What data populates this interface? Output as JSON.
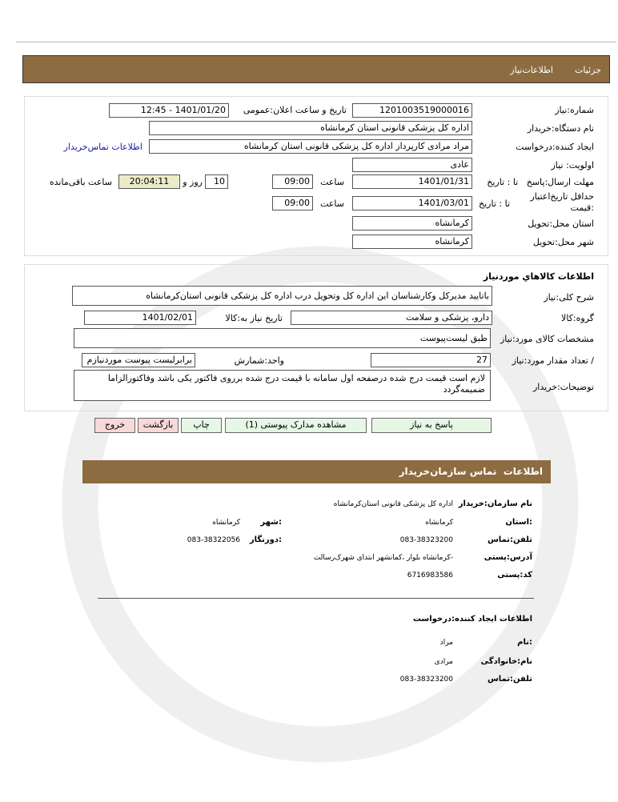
{
  "header": {
    "tabs": [
      "جزئیات",
      "اطلاعات‌نیاز"
    ]
  },
  "need": {
    "number_label": "شماره:نیاز",
    "number": "1201003519000016",
    "announce_label": "تاریخ و ساعت اعلان:عمومی",
    "announce": "1401/01/20 - 12:45",
    "org_label": "نام دستگاه:خریدار",
    "org": "اداره کل پزشکی قانونی استان کرمانشاه",
    "creator_label": "ایجاد کننده:درخواست",
    "creator": "مراد مرادی کارپرداز اداره کل پزشکی قانونی استان کرمانشاه",
    "contact_link": "اطلاعات تماس‌خریدار",
    "priority_label": "اولویت: نیاز",
    "priority": "عادی",
    "deadline_label": "مهلت ارسال:پاسخ   تا : تاریخ",
    "deadline_date": "1401/01/31",
    "time_label": "ساعت",
    "deadline_time": "09:00",
    "days": "10",
    "days_label": "روز و",
    "remaining": "20:04:11",
    "remaining_label": "ساعت باقی‌مانده",
    "validity_label": "حداقل تاریخ‌اعتبار :قیمت",
    "validity_to": "تا : تاریخ",
    "validity_date": "1401/03/01",
    "validity_time": "09:00",
    "province_label": "استان محل:تحویل",
    "province": "کرمانشاه",
    "city_label": "شهر محل:تحویل",
    "city": "کرمانشاه"
  },
  "goods": {
    "title": "اطلاعات کالاهاي موردنياز",
    "desc_label": "شرح کلی:نیاز",
    "desc": "باتایید مدیرکل وکارشناسان این اداره کل وتحویل درب اداره کل پزشکی قانونی استان‌کرمانشاه",
    "group_label": "گروه:کالا",
    "group": "دارو، پزشکی و سلامت",
    "need_date_label": "تاریخ نیاز به:کالا",
    "need_date": "1401/02/01",
    "spec_label": "مشخصات کالای مورد:نیاز",
    "spec": "طبق لیست‌پیوست",
    "qty_label": "/ تعداد مقدار مورد:نیاز",
    "qty": "27",
    "unit_label": "واحد:شمارش",
    "unit": "برابرلیست پیوست موردنیازم",
    "notes_label": "توضیحات:خریدار",
    "notes": "لازم است قیمت درج شده درصفحه اول سامانه با قیمت درج شده برروی فاکتور یکی باشد وفاکتورالزاما ضمیمه‌گردد"
  },
  "buttons": {
    "reply": "پاسخ به نیاز",
    "attachments": "مشاهده مدارک پیوستی (1)",
    "print": "چاپ",
    "back": "بازگشت",
    "exit": "خروج"
  },
  "contact": {
    "title": "اطلاعات  تماس سازمان‌خریدار",
    "org_label": "نام سازمان:خریدار",
    "org": "اداره کل پزشکی قانونی استان‌کرمانشاه",
    "province_label": ":استان",
    "province": "کرمانشاه",
    "city_label": ":شهر",
    "city": "کرمانشاه",
    "phone_label": "تلفن:تماس",
    "phone": "083-38323200",
    "fax_label": ":دورنگار",
    "fax": "083-38322056",
    "address_label": "آدرس:پستی",
    "address": "-کرمانشاه بلوار ،کمانشهر ابتدای شهرک‌رسالت",
    "postal_label": "کد:پستی",
    "postal": "6716983586"
  },
  "creator": {
    "title": "اطلاعات ایجاد کننده:درخواست",
    "name_label": ":نام",
    "name": "مراد",
    "family_label": "نام:خانوادگی",
    "family": "مرادی",
    "phone_label": "تلفن:تماس",
    "phone": "083-38323200"
  },
  "colors": {
    "header_bar": "#8d6c41",
    "button_green": "#e6f7e6",
    "button_pink": "#f8d8d8",
    "remaining_bg": "#ecebc8",
    "link": "#1a1aa6"
  }
}
